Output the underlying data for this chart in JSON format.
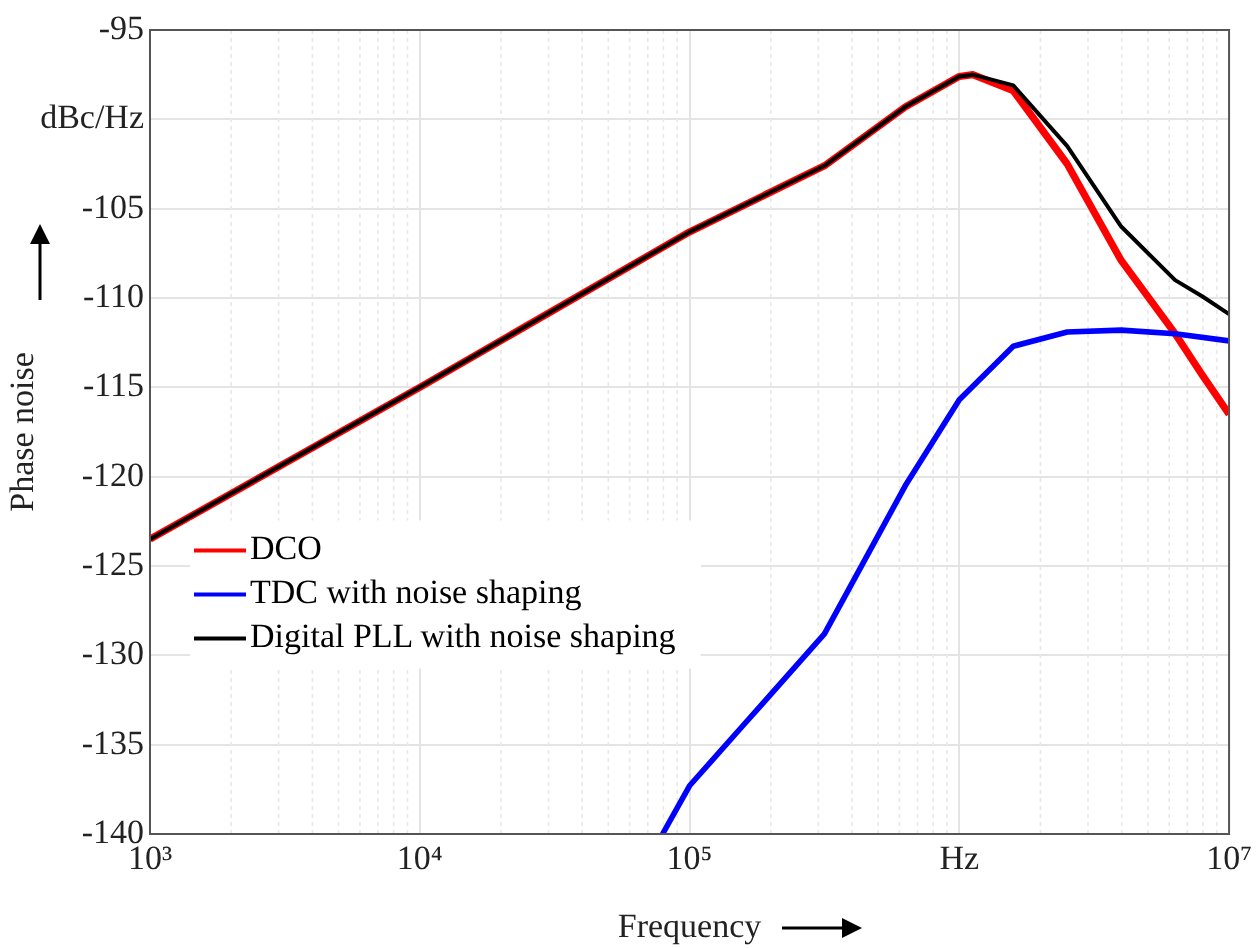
{
  "chart_data": {
    "type": "line",
    "xlabel": "Frequency",
    "ylabel": "Phase noise",
    "log": "x",
    "grid": true,
    "legend": "left",
    "marker": "none",
    "line_style": "solid",
    "xlim": [
      1000,
      10000000
    ],
    "xticks": [
      {
        "value": 1000,
        "label": "10³"
      },
      {
        "value": 10000,
        "label": "10⁴"
      },
      {
        "value": 100000,
        "label": "10⁵"
      },
      {
        "value": 1000000,
        "label": "Hz"
      },
      {
        "value": 10000000,
        "label": "10⁷"
      }
    ],
    "ylim": [
      -140,
      -95
    ],
    "yticks": [
      -140,
      -135,
      -130,
      -125,
      -120,
      -115,
      -110,
      -105,
      {
        "value": -100,
        "label": "dBc/Hz"
      },
      -95
    ],
    "series": [
      {
        "name": "DCO",
        "color": "#ff0000",
        "x": [
          1000,
          10000,
          100000,
          316228,
          630957,
          1000000,
          1122018,
          1584893,
          2511886,
          3981072,
          6309573,
          7943282,
          10000000
        ],
        "values": [
          -123.5,
          -115,
          -106.3,
          -102.6,
          -99.3,
          -97.6,
          -97.5,
          -98.4,
          -102.5,
          -107.9,
          -112,
          -114.3,
          -116.5
        ]
      },
      {
        "name": "TDC with noise shaping",
        "color": "#0000ff",
        "x": [
          79433,
          100000,
          158489,
          316228,
          630957,
          1000000,
          1584893,
          2511886,
          3981072,
          6309573,
          10000000
        ],
        "values": [
          -140,
          -137.3,
          -133.9,
          -128.8,
          -120.5,
          -115.7,
          -112.7,
          -111.9,
          -111.8,
          -112,
          -112.4
        ]
      },
      {
        "name": "Digital PLL with noise shaping",
        "color": "#000000",
        "x": [
          1000,
          10000,
          100000,
          316228,
          630957,
          1000000,
          1122018,
          1584893,
          2511886,
          3981072,
          6309573,
          7943282,
          10000000
        ],
        "values": [
          -123.5,
          -115,
          -106.3,
          -102.6,
          -99.3,
          -97.6,
          -97.5,
          -98.1,
          -101.5,
          -106,
          -109,
          -109.9,
          -110.9
        ]
      }
    ]
  }
}
